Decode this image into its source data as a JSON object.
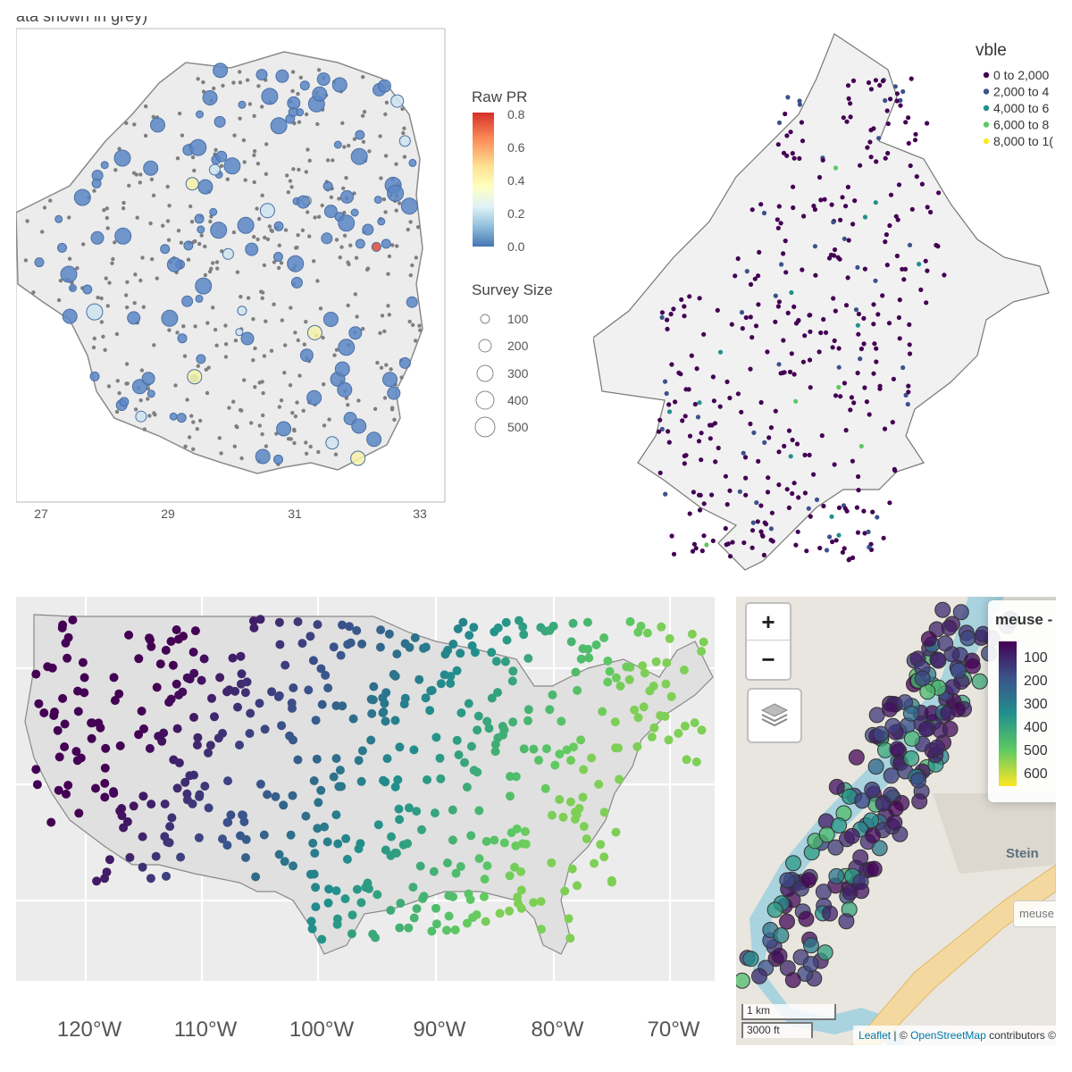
{
  "colors": {
    "zimbabwe_land": "#ececec",
    "land_border": "#8a8a8a",
    "usa_land": "#e3e3e3",
    "usa_panel_bg": "#ececec",
    "leaflet_map_bg": "#e8e6df",
    "river": "#a9d3df",
    "grey_points": "#7f7f7f"
  },
  "panel_a": {
    "title_fragment": "ata shown in grey)",
    "legend_color": {
      "title": "Raw PR",
      "ticks": [
        "0.8",
        "0.6",
        "0.4",
        "0.2",
        "0.0"
      ],
      "gradient": [
        "#d73027",
        "#fc8d59",
        "#fee090",
        "#ffffbf",
        "#e0f3f8",
        "#91bfdb",
        "#4575b4"
      ]
    },
    "legend_size": {
      "title": "Survey Size",
      "items": [
        "100",
        "200",
        "300",
        "400",
        "500"
      ]
    },
    "x_ticks": [
      "27",
      "29",
      "31",
      "33"
    ]
  },
  "panel_b": {
    "legend_title": "vble",
    "legend_items": [
      {
        "label": "0 to 2,000",
        "color": "#440154"
      },
      {
        "label": "2,000 to 4",
        "color": "#3b528b"
      },
      {
        "label": "4,000 to 6",
        "color": "#21908c"
      },
      {
        "label": "6,000 to 8",
        "color": "#5ec962"
      },
      {
        "label": "8,000 to 1(",
        "color": "#fde725"
      }
    ]
  },
  "panel_c": {
    "x_ticks": [
      "120°W",
      "110°W",
      "100°W",
      "90°W",
      "80°W",
      "70°W"
    ]
  },
  "panel_d": {
    "zoom_in": "+",
    "zoom_out": "−",
    "legend_title": "meuse -",
    "legend_ticks": [
      "100",
      "200",
      "300",
      "400",
      "500",
      "600"
    ],
    "gradient": [
      "#440154",
      "#3b528b",
      "#21908c",
      "#5ec962",
      "#fde725"
    ],
    "place_label": "Stein",
    "small_label": "meuse",
    "scale_km": "1 km",
    "scale_ft": "3000 ft",
    "attribution_leaflet": "Leaflet",
    "attribution_sep": " | © ",
    "attribution_osm": "OpenStreetMap",
    "attribution_rest": " contributors ©"
  }
}
